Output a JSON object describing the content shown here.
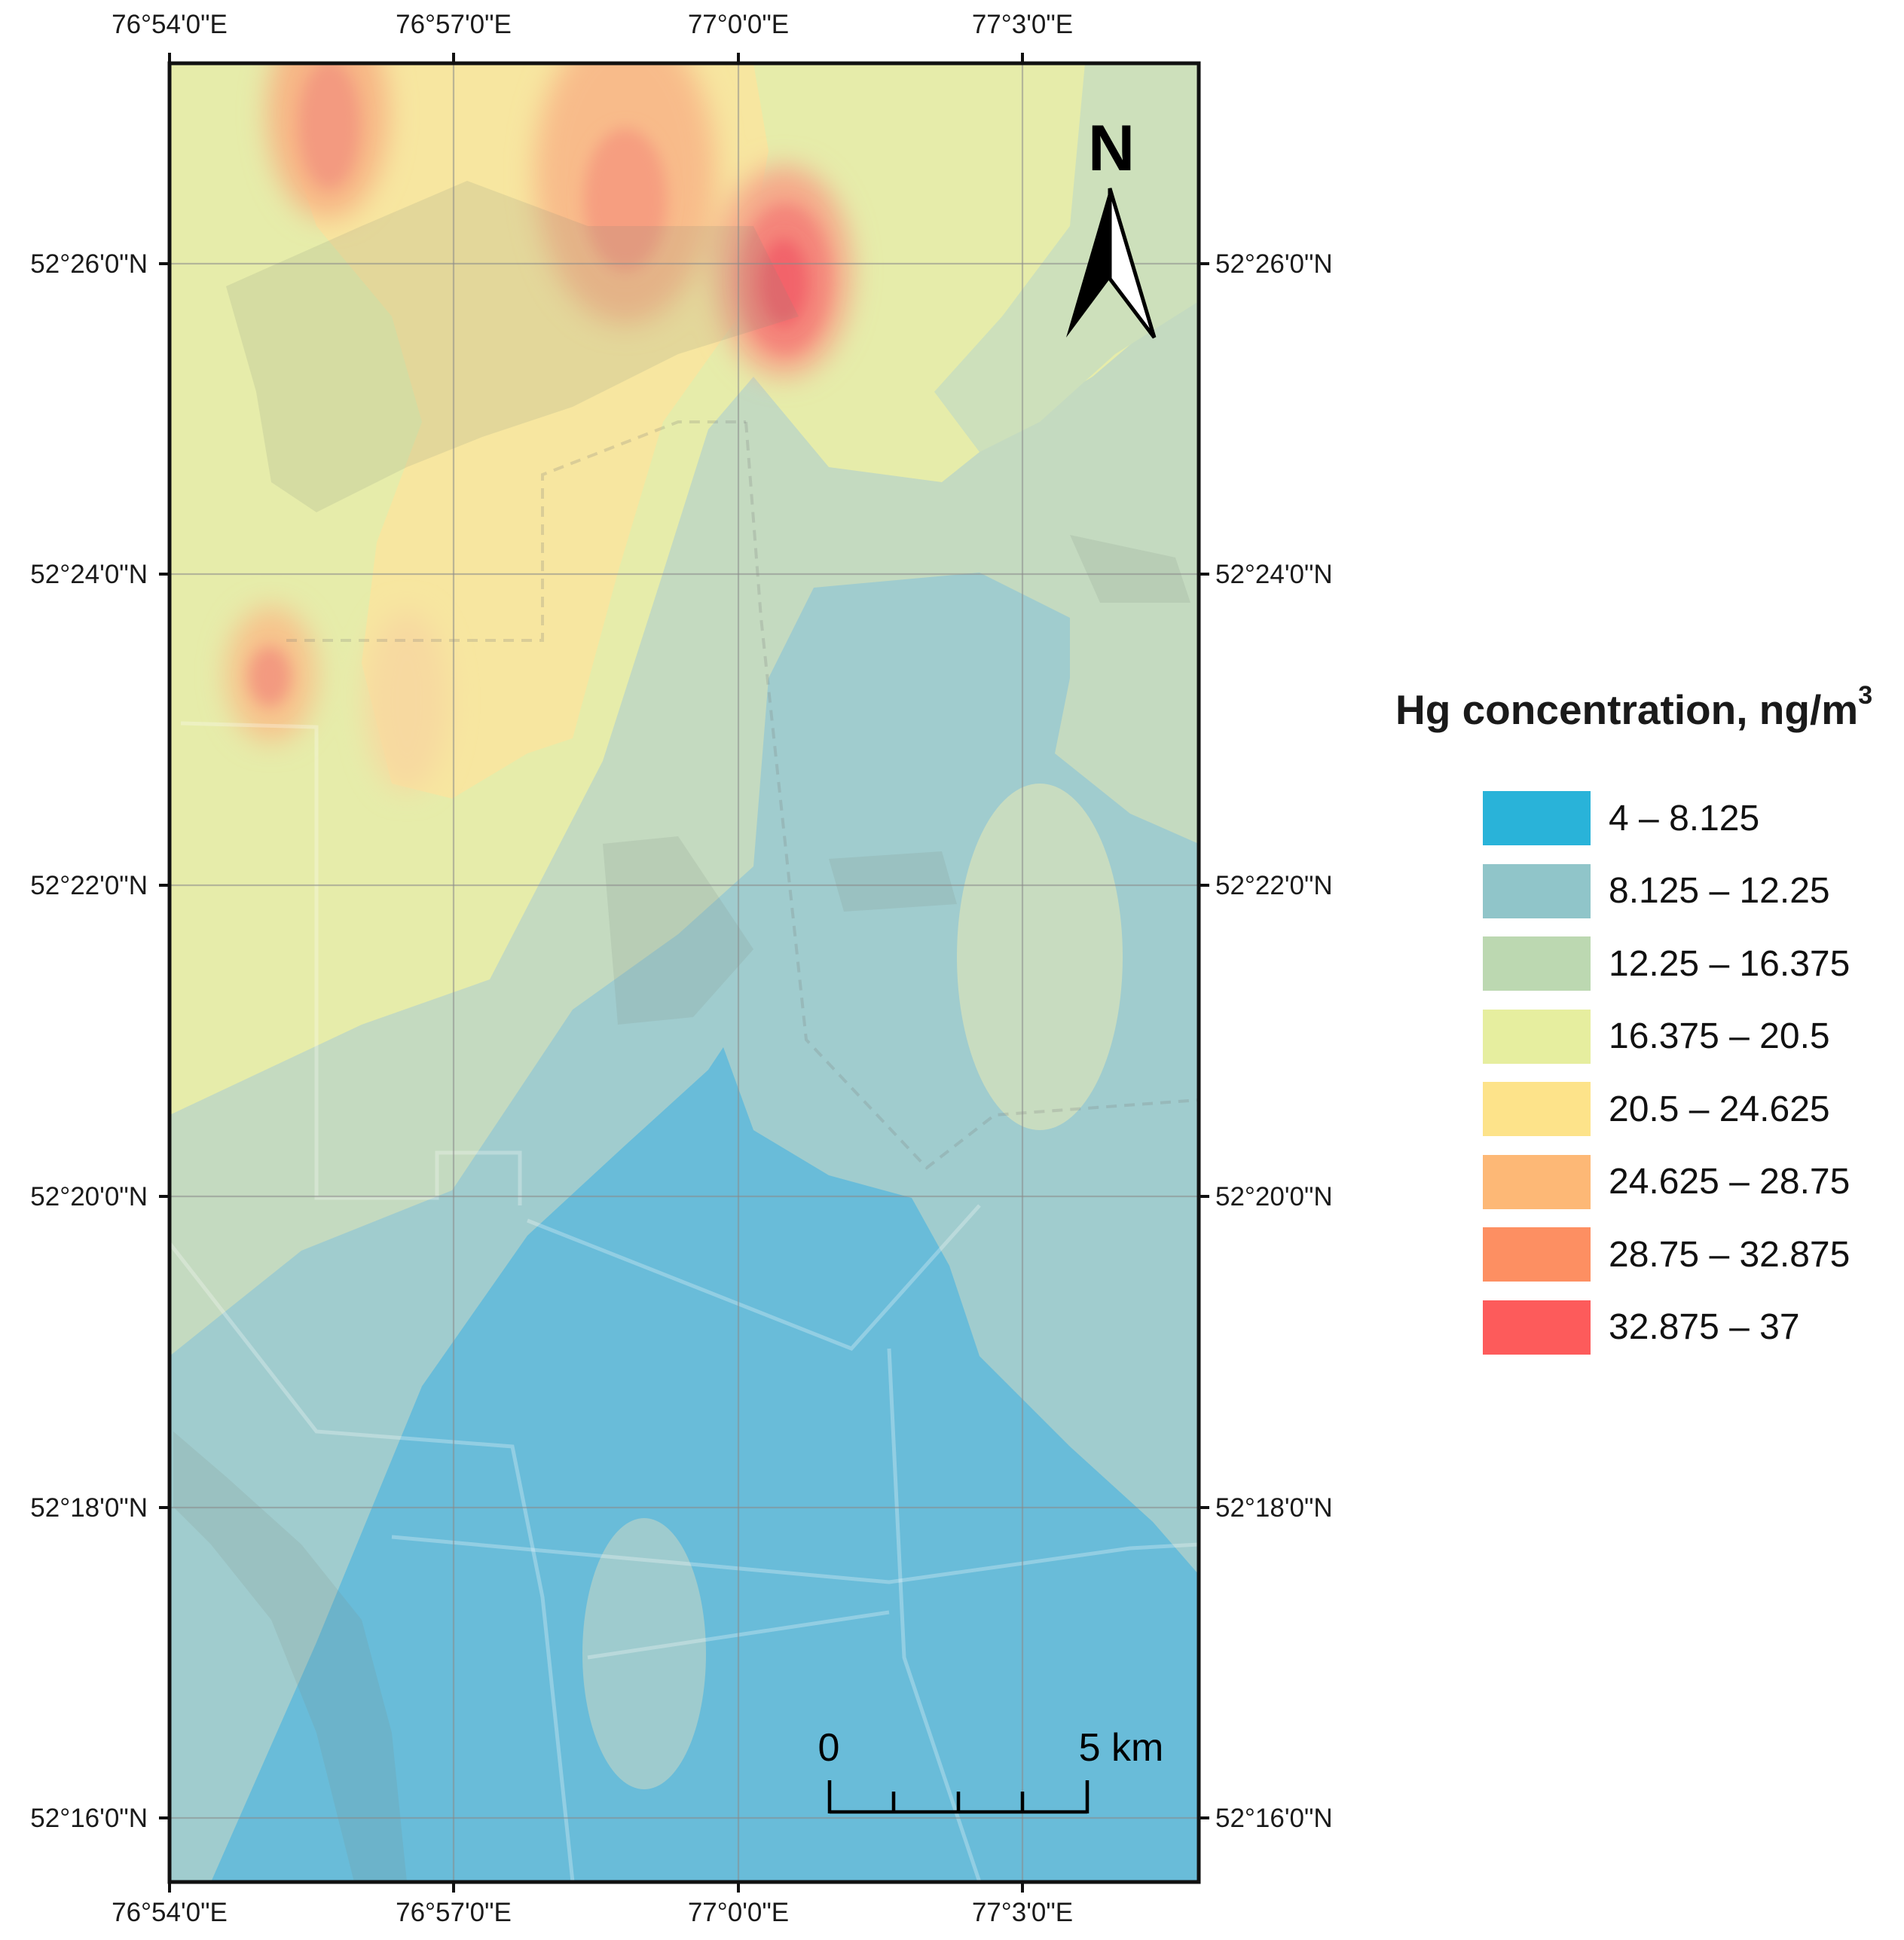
{
  "map": {
    "top_lon_labels": [
      "76°54'0\"E",
      "76°57'0\"E",
      "77°0'0\"E",
      "77°3'0\"E"
    ],
    "bottom_lon_labels": [
      "76°54'0\"E",
      "76°57'0\"E",
      "77°0'0\"E",
      "77°3'0\"E"
    ],
    "left_lat_labels": [
      "52°26'0\"N",
      "52°24'0\"N",
      "52°22'0\"N",
      "52°20'0\"N",
      "52°18'0\"N",
      "52°16'0\"N"
    ],
    "right_lat_labels": [
      "52°26'0\"N",
      "52°24'0\"N",
      "52°22'0\"N",
      "52°20'0\"N",
      "52°18'0\"N",
      "52°16'0\"N"
    ],
    "north_arrow_label": "N",
    "scale_bar": {
      "start_label": "0",
      "end_label": "5 km"
    }
  },
  "legend": {
    "title": "Hg concentration, ng/m",
    "title_superscript": "3",
    "classes": [
      {
        "label": "4 – 8.125",
        "color": "#29b3d9"
      },
      {
        "label": "8.125 – 12.25",
        "color": "#90c5c9"
      },
      {
        "label": "12.25 – 16.375",
        "color": "#bcd8b1"
      },
      {
        "label": "16.375 – 20.5",
        "color": "#e6ee9f"
      },
      {
        "label": "20.5 – 24.625",
        "color": "#fde38a"
      },
      {
        "label": "24.625 – 28.75",
        "color": "#fdb876"
      },
      {
        "label": "28.75 – 32.875",
        "color": "#fd8f62"
      },
      {
        "label": "32.875 – 37",
        "color": "#fd5b5b"
      }
    ]
  }
}
